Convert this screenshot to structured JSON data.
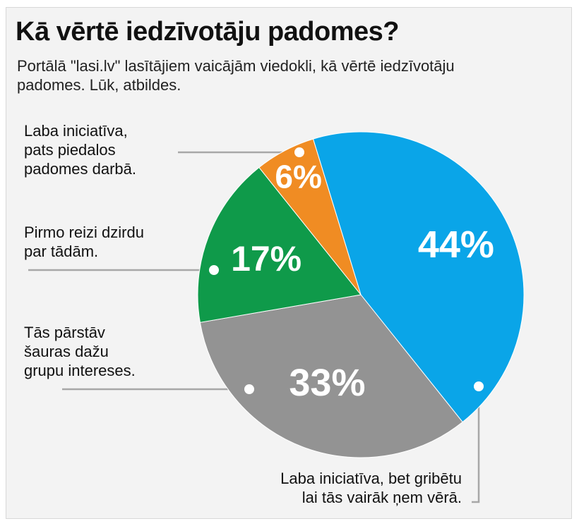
{
  "header": {
    "title": "Kā vērtē iedzīvotāju padomes?",
    "subtitle": "Portālā \"lasi.lv\" lasītājiem vaicājām viedokli, kā vērtē iedzīvotāju padomes. Lūk, atbildes."
  },
  "labels": [
    {
      "lines": [
        "Laba iniciatīva,",
        "pats piedalos",
        "padomes darbā."
      ]
    },
    {
      "lines": [
        "Pirmo reizi dzirdu",
        "par tādām."
      ]
    },
    {
      "lines": [
        "Tās pārstāv",
        "šauras dažu",
        "grupu intereses."
      ]
    },
    {
      "lines": [
        "Laba iniciatīva, bet gribētu",
        "lai tās vairāk ņem vērā."
      ]
    }
  ],
  "chart_data": {
    "type": "pie",
    "title": "Kā vērtē iedzīvotāju padomes?",
    "slices": [
      {
        "label": "Laba iniciatīva, bet gribētu lai tās vairāk ņem vērā.",
        "value": 44,
        "display": "44%",
        "color": "#0aa5e8"
      },
      {
        "label": "Tās pārstāv šauras dažu grupu intereses.",
        "value": 33,
        "display": "33%",
        "color": "#939393"
      },
      {
        "label": "Pirmo reizi dzirdu par tādām.",
        "value": 17,
        "display": "17%",
        "color": "#0f9a4a"
      },
      {
        "label": "Laba iniciatīva, pats piedalos padomes darbā.",
        "value": 6,
        "display": "6%",
        "color": "#f08c23"
      }
    ]
  }
}
